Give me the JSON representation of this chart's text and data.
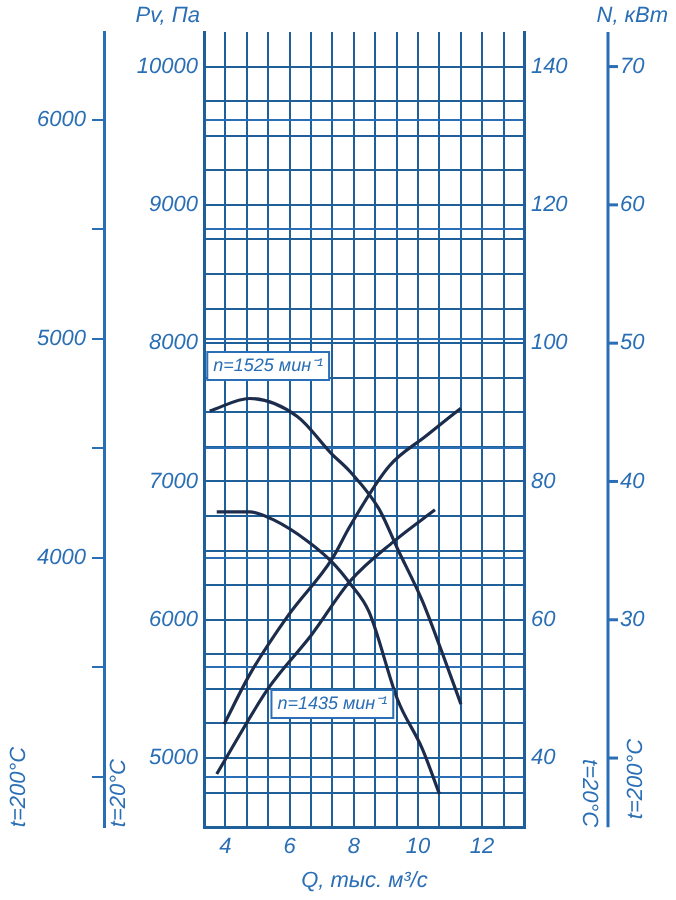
{
  "chart_data": {
    "type": "line",
    "xlabel": "Q, тыс. м³/с",
    "ylabel": "t=20°C",
    "y2label": "t=20°C",
    "y3label": "t=200°C",
    "annotations": [
      "Pv, Па",
      "N, кВт",
      "n=1525 мин⁻¹",
      "n=1435 мин⁻¹",
      "t=200°C",
      "70",
      "60",
      "50",
      "40",
      "30"
    ],
    "xlim": [
      3.333,
      13.333
    ],
    "xticks": [
      4,
      {
        "value": 4.667,
        "label": null
      },
      {
        "value": 5.333,
        "label": null
      },
      6,
      {
        "value": 6.667,
        "label": null
      },
      {
        "value": 7.333,
        "label": null
      },
      8,
      {
        "value": 8.667,
        "label": null
      },
      {
        "value": 9.333,
        "label": null
      },
      10,
      {
        "value": 10.667,
        "label": null
      },
      {
        "value": 11.333,
        "label": null
      },
      12,
      {
        "value": 12.667,
        "label": null
      }
    ],
    "ylim": [
      4500,
      10250
    ],
    "yticks": [
      {
        "value": 4750,
        "label": null
      },
      5000,
      {
        "value": 5250,
        "label": null
      },
      {
        "value": 5500,
        "label": null
      },
      {
        "value": 5750,
        "label": null
      },
      6000,
      {
        "value": 6250,
        "label": null
      },
      {
        "value": 6500,
        "label": null
      },
      {
        "value": 6750,
        "label": null
      },
      7000,
      {
        "value": 7250,
        "label": null
      },
      {
        "value": 7500,
        "label": null
      },
      {
        "value": 7750,
        "label": null
      },
      8000,
      {
        "value": 8250,
        "label": null
      },
      {
        "value": 8500,
        "label": null
      },
      {
        "value": 8750,
        "label": null
      },
      9000,
      {
        "value": 9250,
        "label": null
      },
      {
        "value": 9500,
        "label": null
      },
      {
        "value": 9750,
        "label": null
      },
      10000
    ],
    "y2lim": [
      30,
      145
    ],
    "y2ticks": [
      40,
      60,
      80,
      100,
      120,
      140
    ],
    "y3lim": [
      2770,
      6400
    ],
    "y3ticks": [
      {
        "value": 3000,
        "label": null
      },
      {
        "value": 3500,
        "label": null
      },
      4000,
      {
        "value": 4500,
        "label": null
      },
      5000,
      {
        "value": 5500,
        "label": null
      },
      6000
    ],
    "grid": true,
    "legend": false,
    "marker": "none",
    "line_style": "solid",
    "series": [
      {
        "color": "#1c2c4c",
        "x": [
          3.51,
          4.76,
          6.24,
          7.31,
          7.89,
          8.79,
          9.37,
          10.13,
          10.71,
          11.34
        ],
        "values": [
          7510,
          7600,
          7470,
          7200,
          7070,
          6800,
          6510,
          6140,
          5790,
          5390
        ]
      },
      {
        "color": "#1c2c4c",
        "x": [
          3.73,
          4.76,
          5.52,
          6.55,
          7.31,
          7.89,
          8.47,
          9.37,
          10.13,
          10.67
        ],
        "values": [
          6780,
          6780,
          6720,
          6570,
          6420,
          6260,
          6060,
          5420,
          5070,
          4740
        ]
      },
      {
        "color": "#1c2c4c",
        "axis": "y2",
        "x": [
          3.96,
          4.76,
          5.97,
          7.31,
          7.89,
          9.1,
          10.26,
          11.34
        ],
        "values": [
          44.9,
          52.1,
          60.7,
          68.7,
          73.6,
          82.2,
          86.6,
          90.6
        ]
      },
      {
        "color": "#1c2c4c",
        "axis": "y2",
        "x": [
          3.73,
          5.34,
          6.68,
          7.89,
          9.24,
          10.53
        ],
        "values": [
          37.7,
          50.1,
          57.8,
          65.6,
          71.3,
          75.9
        ]
      }
    ]
  }
}
